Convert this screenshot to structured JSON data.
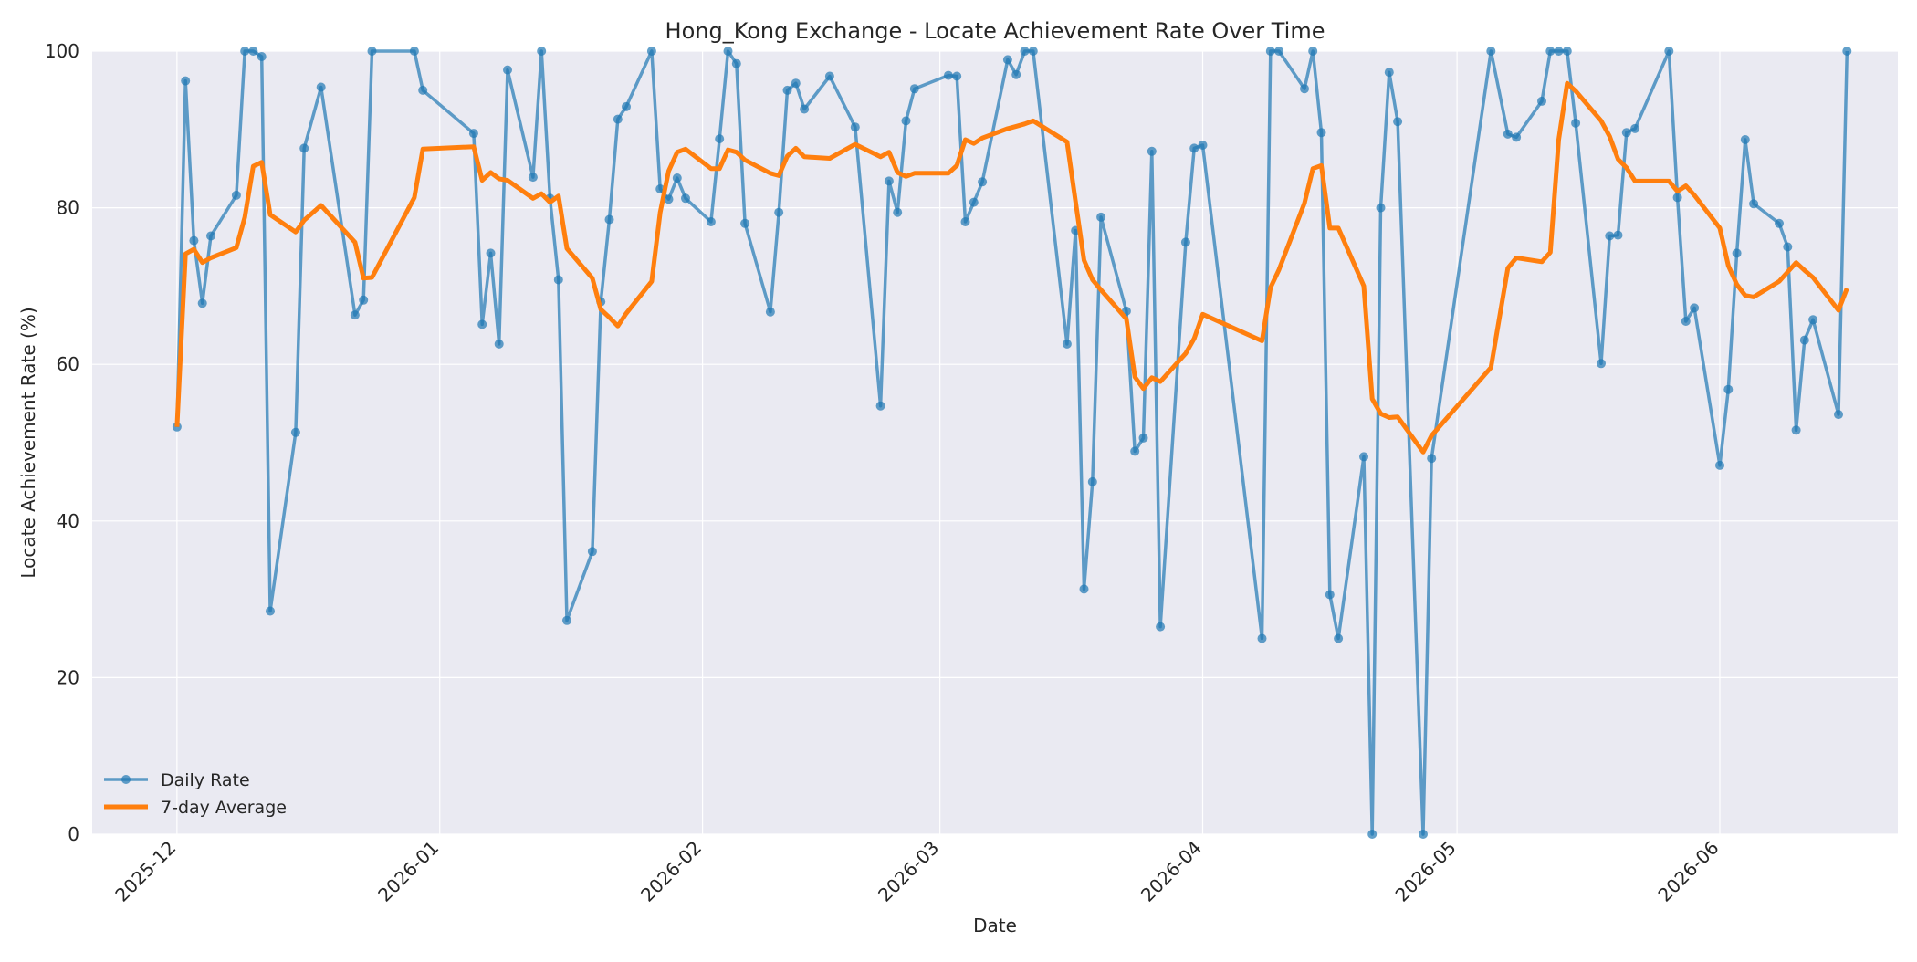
{
  "chart_data": {
    "type": "line",
    "title": "Hong_Kong Exchange - Locate Achievement Rate Over Time",
    "xlabel": "Date",
    "ylabel": "Locate Achievement Rate (%)",
    "ylim": [
      0,
      100
    ],
    "xlim": [
      "2025-11-21",
      "2026-06-22"
    ],
    "y_ticks": [
      0,
      20,
      40,
      60,
      80,
      100
    ],
    "x_ticks": [
      {
        "date": "2025-12-01",
        "label": "2025-12"
      },
      {
        "date": "2026-01-01",
        "label": "2026-01"
      },
      {
        "date": "2026-02-01",
        "label": "2026-02"
      },
      {
        "date": "2026-03-01",
        "label": "2026-03"
      },
      {
        "date": "2026-04-01",
        "label": "2026-04"
      },
      {
        "date": "2026-05-01",
        "label": "2026-05"
      },
      {
        "date": "2026-06-01",
        "label": "2026-06"
      }
    ],
    "grid": true,
    "legend_position": "lower-left",
    "series": [
      {
        "name": "Daily Rate",
        "color": "#1f77b4",
        "markers": true,
        "points": [
          [
            "2025-12-01",
            52.0
          ],
          [
            "2025-12-02",
            96.2
          ],
          [
            "2025-12-03",
            75.8
          ],
          [
            "2025-12-04",
            67.8
          ],
          [
            "2025-12-05",
            76.4
          ],
          [
            "2025-12-08",
            81.6
          ],
          [
            "2025-12-09",
            100
          ],
          [
            "2025-12-10",
            100
          ],
          [
            "2025-12-11",
            99.3
          ],
          [
            "2025-12-12",
            28.5
          ],
          [
            "2025-12-15",
            51.3
          ],
          [
            "2025-12-16",
            87.6
          ],
          [
            "2025-12-18",
            95.4
          ],
          [
            "2025-12-22",
            66.3
          ],
          [
            "2025-12-23",
            68.2
          ],
          [
            "2025-12-24",
            100
          ],
          [
            "2025-12-29",
            100
          ],
          [
            "2025-12-30",
            95.0
          ],
          [
            "2026-01-05",
            89.5
          ],
          [
            "2026-01-06",
            65.1
          ],
          [
            "2026-01-07",
            74.2
          ],
          [
            "2026-01-08",
            62.6
          ],
          [
            "2026-01-09",
            97.6
          ],
          [
            "2026-01-12",
            83.9
          ],
          [
            "2026-01-13",
            100
          ],
          [
            "2026-01-14",
            81.2
          ],
          [
            "2026-01-15",
            70.8
          ],
          [
            "2026-01-16",
            27.3
          ],
          [
            "2026-01-19",
            36.1
          ],
          [
            "2026-01-20",
            68.0
          ],
          [
            "2026-01-21",
            78.5
          ],
          [
            "2026-01-22",
            91.3
          ],
          [
            "2026-01-23",
            92.9
          ],
          [
            "2026-01-26",
            100
          ],
          [
            "2026-01-27",
            82.4
          ],
          [
            "2026-01-28",
            81.1
          ],
          [
            "2026-01-29",
            83.8
          ],
          [
            "2026-01-30",
            81.2
          ],
          [
            "2026-02-02",
            78.2
          ],
          [
            "2026-02-03",
            88.8
          ],
          [
            "2026-02-04",
            100
          ],
          [
            "2026-02-05",
            98.4
          ],
          [
            "2026-02-06",
            78.0
          ],
          [
            "2026-02-09",
            66.7
          ],
          [
            "2026-02-10",
            79.4
          ],
          [
            "2026-02-11",
            95.0
          ],
          [
            "2026-02-12",
            95.9
          ],
          [
            "2026-02-13",
            92.6
          ],
          [
            "2026-02-16",
            96.8
          ],
          [
            "2026-02-19",
            90.3
          ],
          [
            "2026-02-22",
            54.7
          ],
          [
            "2026-02-23",
            83.4
          ],
          [
            "2026-02-24",
            79.4
          ],
          [
            "2026-02-25",
            91.1
          ],
          [
            "2026-02-26",
            95.2
          ],
          [
            "2026-03-02",
            96.9
          ],
          [
            "2026-03-03",
            96.8
          ],
          [
            "2026-03-04",
            78.2
          ],
          [
            "2026-03-05",
            80.7
          ],
          [
            "2026-03-06",
            83.3
          ],
          [
            "2026-03-09",
            98.9
          ],
          [
            "2026-03-10",
            97.0
          ],
          [
            "2026-03-11",
            100
          ],
          [
            "2026-03-12",
            100
          ],
          [
            "2026-03-16",
            62.6
          ],
          [
            "2026-03-17",
            77.1
          ],
          [
            "2026-03-18",
            31.3
          ],
          [
            "2026-03-19",
            45.0
          ],
          [
            "2026-03-20",
            78.8
          ],
          [
            "2026-03-23",
            66.8
          ],
          [
            "2026-03-24",
            48.9
          ],
          [
            "2026-03-25",
            50.6
          ],
          [
            "2026-03-26",
            87.2
          ],
          [
            "2026-03-27",
            26.5
          ],
          [
            "2026-03-30",
            75.6
          ],
          [
            "2026-03-31",
            87.6
          ],
          [
            "2026-04-01",
            88.0
          ],
          [
            "2026-04-08",
            25.0
          ],
          [
            "2026-04-09",
            100
          ],
          [
            "2026-04-10",
            100
          ],
          [
            "2026-04-13",
            95.2
          ],
          [
            "2026-04-14",
            100
          ],
          [
            "2026-04-15",
            89.6
          ],
          [
            "2026-04-16",
            30.6
          ],
          [
            "2026-04-17",
            25.0
          ],
          [
            "2026-04-20",
            48.2
          ],
          [
            "2026-04-21",
            0
          ],
          [
            "2026-04-22",
            80.0
          ],
          [
            "2026-04-23",
            97.3
          ],
          [
            "2026-04-24",
            91.0
          ],
          [
            "2026-04-27",
            0
          ],
          [
            "2026-04-28",
            48.0
          ],
          [
            "2026-05-05",
            100
          ],
          [
            "2026-05-07",
            89.4
          ],
          [
            "2026-05-08",
            89.0
          ],
          [
            "2026-05-11",
            93.6
          ],
          [
            "2026-05-12",
            100
          ],
          [
            "2026-05-13",
            100
          ],
          [
            "2026-05-14",
            100
          ],
          [
            "2026-05-15",
            90.8
          ],
          [
            "2026-05-18",
            60.1
          ],
          [
            "2026-05-19",
            76.4
          ],
          [
            "2026-05-20",
            76.5
          ],
          [
            "2026-05-21",
            89.6
          ],
          [
            "2026-05-22",
            90.1
          ],
          [
            "2026-05-26",
            100
          ],
          [
            "2026-05-27",
            81.3
          ],
          [
            "2026-05-28",
            65.5
          ],
          [
            "2026-05-29",
            67.2
          ],
          [
            "2026-06-01",
            47.1
          ],
          [
            "2026-06-02",
            56.8
          ],
          [
            "2026-06-03",
            74.2
          ],
          [
            "2026-06-04",
            88.7
          ],
          [
            "2026-06-05",
            80.5
          ],
          [
            "2026-06-08",
            78.0
          ],
          [
            "2026-06-09",
            75.0
          ],
          [
            "2026-06-10",
            51.6
          ],
          [
            "2026-06-11",
            63.1
          ],
          [
            "2026-06-12",
            65.7
          ],
          [
            "2026-06-15",
            53.6
          ],
          [
            "2026-06-16",
            100
          ]
        ]
      },
      {
        "name": "7-day Average",
        "color": "#ff7f0e",
        "markers": false,
        "points": [
          [
            "2025-12-01",
            52.0
          ],
          [
            "2025-12-02",
            74.1
          ],
          [
            "2025-12-03",
            74.7
          ],
          [
            "2025-12-04",
            73.0
          ],
          [
            "2025-12-05",
            73.6
          ],
          [
            "2025-12-08",
            74.9
          ],
          [
            "2025-12-09",
            78.8
          ],
          [
            "2025-12-10",
            85.3
          ],
          [
            "2025-12-11",
            85.8
          ],
          [
            "2025-12-12",
            79.1
          ],
          [
            "2025-12-15",
            76.9
          ],
          [
            "2025-12-16",
            78.4
          ],
          [
            "2025-12-18",
            80.3
          ],
          [
            "2025-12-22",
            75.6
          ],
          [
            "2025-12-23",
            71.0
          ],
          [
            "2025-12-24",
            71.1
          ],
          [
            "2025-12-29",
            81.3
          ],
          [
            "2025-12-30",
            87.5
          ],
          [
            "2026-01-05",
            87.8
          ],
          [
            "2026-01-06",
            83.5
          ],
          [
            "2026-01-07",
            84.5
          ],
          [
            "2026-01-08",
            83.7
          ],
          [
            "2026-01-09",
            83.5
          ],
          [
            "2026-01-12",
            81.2
          ],
          [
            "2026-01-13",
            81.8
          ],
          [
            "2026-01-14",
            80.7
          ],
          [
            "2026-01-15",
            81.5
          ],
          [
            "2026-01-16",
            74.8
          ],
          [
            "2026-01-19",
            71.0
          ],
          [
            "2026-01-20",
            67.0
          ],
          [
            "2026-01-21",
            66.0
          ],
          [
            "2026-01-22",
            64.9
          ],
          [
            "2026-01-23",
            66.5
          ],
          [
            "2026-01-26",
            70.6
          ],
          [
            "2026-01-27",
            79.4
          ],
          [
            "2026-01-28",
            84.7
          ],
          [
            "2026-01-29",
            87.1
          ],
          [
            "2026-01-30",
            87.5
          ],
          [
            "2026-02-02",
            85.0
          ],
          [
            "2026-02-03",
            85.0
          ],
          [
            "2026-02-04",
            87.4
          ],
          [
            "2026-02-05",
            87.1
          ],
          [
            "2026-02-06",
            86.1
          ],
          [
            "2026-02-09",
            84.4
          ],
          [
            "2026-02-10",
            84.1
          ],
          [
            "2026-02-11",
            86.6
          ],
          [
            "2026-02-12",
            87.6
          ],
          [
            "2026-02-13",
            86.5
          ],
          [
            "2026-02-16",
            86.3
          ],
          [
            "2026-02-19",
            88.1
          ],
          [
            "2026-02-22",
            86.5
          ],
          [
            "2026-02-23",
            87.1
          ],
          [
            "2026-02-24",
            84.5
          ],
          [
            "2026-02-25",
            84.0
          ],
          [
            "2026-02-26",
            84.4
          ],
          [
            "2026-03-02",
            84.4
          ],
          [
            "2026-03-03",
            85.4
          ],
          [
            "2026-03-04",
            88.7
          ],
          [
            "2026-03-05",
            88.2
          ],
          [
            "2026-03-06",
            88.9
          ],
          [
            "2026-03-09",
            90.1
          ],
          [
            "2026-03-10",
            90.4
          ],
          [
            "2026-03-11",
            90.7
          ],
          [
            "2026-03-12",
            91.1
          ],
          [
            "2026-03-16",
            88.4
          ],
          [
            "2026-03-17",
            80.8
          ],
          [
            "2026-03-18",
            73.3
          ],
          [
            "2026-03-19",
            70.8
          ],
          [
            "2026-03-20",
            69.5
          ],
          [
            "2026-03-23",
            65.8
          ],
          [
            "2026-03-24",
            58.4
          ],
          [
            "2026-03-25",
            56.9
          ],
          [
            "2026-03-26",
            58.3
          ],
          [
            "2026-03-27",
            57.8
          ],
          [
            "2026-03-30",
            61.4
          ],
          [
            "2026-03-31",
            63.3
          ],
          [
            "2026-04-01",
            66.4
          ],
          [
            "2026-04-08",
            63.0
          ],
          [
            "2026-04-09",
            69.8
          ],
          [
            "2026-04-10",
            72.1
          ],
          [
            "2026-04-13",
            80.6
          ],
          [
            "2026-04-14",
            85.0
          ],
          [
            "2026-04-15",
            85.4
          ],
          [
            "2026-04-16",
            77.4
          ],
          [
            "2026-04-17",
            77.4
          ],
          [
            "2026-04-20",
            70.0
          ],
          [
            "2026-04-21",
            55.6
          ],
          [
            "2026-04-22",
            53.7
          ],
          [
            "2026-04-23",
            53.2
          ],
          [
            "2026-04-24",
            53.3
          ],
          [
            "2026-04-27",
            48.8
          ],
          [
            "2026-04-28",
            50.9
          ],
          [
            "2026-05-05",
            59.6
          ],
          [
            "2026-05-07",
            72.3
          ],
          [
            "2026-05-08",
            73.6
          ],
          [
            "2026-05-11",
            73.1
          ],
          [
            "2026-05-12",
            74.3
          ],
          [
            "2026-05-13",
            88.7
          ],
          [
            "2026-05-14",
            95.9
          ],
          [
            "2026-05-15",
            94.9
          ],
          [
            "2026-05-18",
            91.1
          ],
          [
            "2026-05-19",
            89.1
          ],
          [
            "2026-05-20",
            86.2
          ],
          [
            "2026-05-21",
            85.1
          ],
          [
            "2026-05-22",
            83.4
          ],
          [
            "2026-05-26",
            83.4
          ],
          [
            "2026-05-27",
            82.1
          ],
          [
            "2026-05-28",
            82.8
          ],
          [
            "2026-05-29",
            81.6
          ],
          [
            "2026-06-01",
            77.4
          ],
          [
            "2026-06-02",
            72.6
          ],
          [
            "2026-06-03",
            70.2
          ],
          [
            "2026-06-04",
            68.8
          ],
          [
            "2026-06-05",
            68.6
          ],
          [
            "2026-06-08",
            70.6
          ],
          [
            "2026-06-09",
            71.8
          ],
          [
            "2026-06-10",
            73.0
          ],
          [
            "2026-06-11",
            72.0
          ],
          [
            "2026-06-12",
            71.1
          ],
          [
            "2026-06-15",
            66.9
          ],
          [
            "2026-06-16",
            69.7
          ]
        ]
      }
    ]
  }
}
